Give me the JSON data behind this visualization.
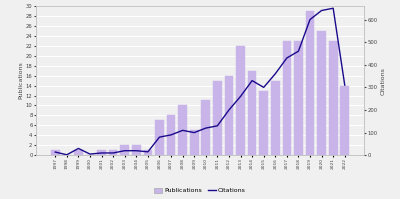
{
  "years": [
    1997,
    1998,
    1999,
    2000,
    2001,
    2002,
    2003,
    2004,
    2005,
    2006,
    2007,
    2008,
    2009,
    2010,
    2011,
    2012,
    2013,
    2014,
    2015,
    2016,
    2017,
    2018,
    2019,
    2020,
    2021,
    2022
  ],
  "publications": [
    1,
    0,
    1,
    0,
    1,
    1,
    2,
    2,
    1,
    7,
    8,
    10,
    5,
    11,
    15,
    16,
    22,
    17,
    13,
    15,
    23,
    23,
    29,
    25,
    23,
    14
  ],
  "citations": [
    14,
    2,
    30,
    5,
    10,
    10,
    20,
    20,
    15,
    80,
    90,
    110,
    100,
    120,
    130,
    200,
    260,
    330,
    300,
    360,
    430,
    460,
    600,
    640,
    650,
    310
  ],
  "bar_color": "#c8b4e8",
  "line_color": "#1a0a8c",
  "ylabel_left": "Publications",
  "ylabel_right": "Citations",
  "ylim_left": [
    0,
    30
  ],
  "ylim_right": [
    0,
    660
  ],
  "yticks_left": [
    0,
    2,
    4,
    6,
    8,
    10,
    12,
    14,
    16,
    18,
    20,
    22,
    24,
    26,
    28,
    30
  ],
  "yticks_right": [
    0,
    100,
    200,
    300,
    400,
    500,
    600
  ],
  "ytick_right_labels": [
    "0",
    "100",
    "200",
    "300",
    "400",
    "500",
    "600"
  ],
  "legend_labels": [
    "Publications",
    "Citations"
  ],
  "background_color": "#f0f0f0",
  "plot_bg_color": "#f0f0f0",
  "grid_color": "#ffffff",
  "spine_color": "#bbbbbb"
}
